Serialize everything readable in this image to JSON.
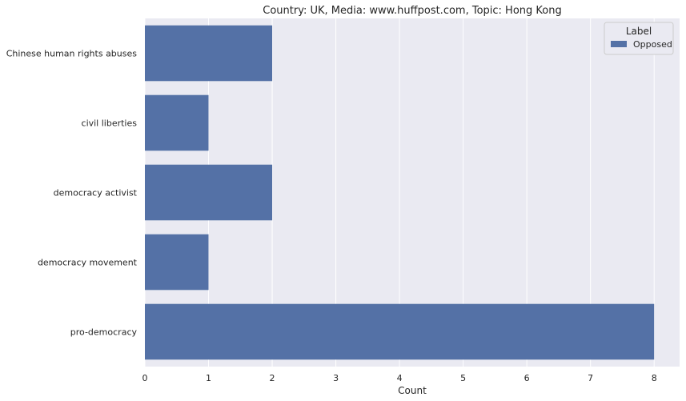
{
  "chart_data": {
    "type": "bar",
    "orientation": "horizontal",
    "title": "Country: UK, Media: www.huffpost.com, Topic: Hong Kong",
    "xlabel": "Count",
    "ylabel": "",
    "categories": [
      "Chinese human rights abuses",
      "civil liberties",
      "democracy activist",
      "democracy movement",
      "pro-democracy"
    ],
    "series": [
      {
        "name": "Opposed",
        "values": [
          2,
          1,
          2,
          1,
          8
        ],
        "color": "#5471a6"
      }
    ],
    "xlim": [
      0,
      8.4
    ],
    "xticks": [
      0,
      1,
      2,
      3,
      4,
      5,
      6,
      7,
      8
    ],
    "grid": true,
    "legend": {
      "title": "Label",
      "placement": "top-right"
    },
    "colors": {
      "plot_background": "#eaeaf2",
      "grid": "#ffffff",
      "text": "#262626"
    }
  }
}
